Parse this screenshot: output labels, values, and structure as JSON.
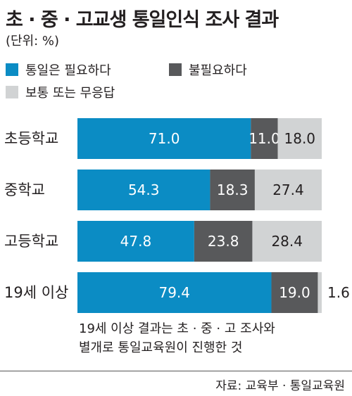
{
  "header": {
    "title": "초 · 중 · 고교생 통일인식 조사 결과",
    "unit": "(단위: %)"
  },
  "legend": [
    {
      "label": "통일은 필요하다",
      "color": "#0b8cc4"
    },
    {
      "label": "불필요하다",
      "color": "#58595b"
    },
    {
      "label": "보통 또는 무응답",
      "color": "#d1d3d4"
    }
  ],
  "chart_data": {
    "type": "bar",
    "orientation": "horizontal",
    "stacked": true,
    "categories": [
      "초등학교",
      "중학교",
      "고등학교",
      "19세 이상"
    ],
    "series": [
      {
        "name": "통일은 필요하다",
        "values": [
          71.0,
          54.3,
          47.8,
          79.4
        ],
        "labels": [
          "71.0",
          "54.3",
          "47.8",
          "79.4"
        ],
        "color": "#0b8cc4",
        "label_color": "#ffffff"
      },
      {
        "name": "불필요하다",
        "values": [
          11.0,
          18.3,
          23.8,
          19.0
        ],
        "labels": [
          "11.0",
          "18.3",
          "23.8",
          "19.0"
        ],
        "color": "#58595b",
        "label_color": "#ffffff"
      },
      {
        "name": "보통 또는 무응답",
        "values": [
          18.0,
          27.4,
          28.4,
          1.6
        ],
        "labels": [
          "18.0",
          "27.4",
          "28.4",
          "1.6"
        ],
        "color": "#d1d3d4",
        "label_color": "#231f20"
      }
    ],
    "xlim": [
      0,
      100
    ]
  },
  "note": {
    "line1": "19세 이상 결과는 초 · 중 · 고 조사와",
    "line2": "별개로 통일교육원이 진행한 것"
  },
  "source": "자료: 교육부 · 통일교육원"
}
